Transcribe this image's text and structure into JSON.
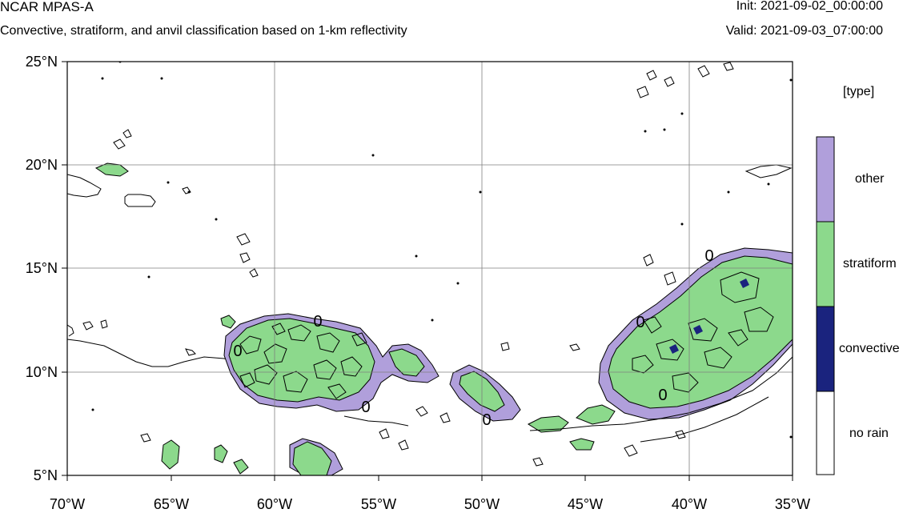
{
  "header": {
    "title": "NCAR MPAS-A",
    "subtitle": "Convective, stratiform, and anvil classification based on 1-km reflectivity",
    "init": "Init: 2021-09-02_00:00:00",
    "valid": "Valid: 2021-09-03_07:00:00"
  },
  "map": {
    "lon_range": [
      -70,
      -35
    ],
    "lat_range": [
      5,
      25
    ],
    "lat_ticks": [
      "25°N",
      "20°N",
      "15°N",
      "10°N",
      "5°N"
    ],
    "lon_ticks": [
      "70°W",
      "65°W",
      "60°W",
      "55°W",
      "50°W",
      "45°W",
      "40°W",
      "35°W"
    ],
    "grid": true,
    "contour_labels": [
      "0",
      "0",
      "0",
      "0",
      "0",
      "0",
      "0"
    ]
  },
  "legend": {
    "title": "[type]",
    "placement": "right",
    "items": [
      {
        "label": "other",
        "color": "#b09fdb"
      },
      {
        "label": "stratiform",
        "color": "#8cd98c"
      },
      {
        "label": "convective",
        "color": "#1a237e"
      },
      {
        "label": "no rain",
        "color": "#ffffff"
      }
    ]
  }
}
